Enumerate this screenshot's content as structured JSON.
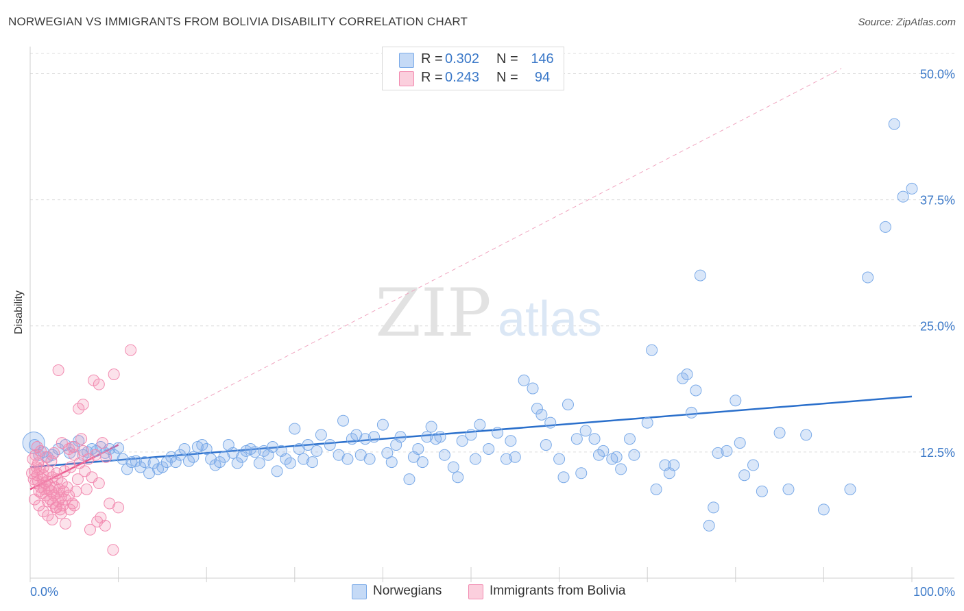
{
  "header": {
    "title": "NORWEGIAN VS IMMIGRANTS FROM BOLIVIA DISABILITY CORRELATION CHART",
    "source": "Source: ZipAtlas.com"
  },
  "watermark": {
    "zip": "ZIP",
    "atlas": "atlas"
  },
  "legend_top": [
    {
      "r_label": "R =",
      "r_value": "0.302",
      "n_label": "N =",
      "n_value": "146",
      "color": "#7aaae8"
    },
    {
      "r_label": "R =",
      "r_value": "0.243",
      "n_label": "N =",
      "n_value": "94",
      "color": "#f28ab0"
    }
  ],
  "legend_bottom": [
    {
      "label": "Norwegians",
      "color": "#7aaae8"
    },
    {
      "label": "Immigrants from Bolivia",
      "color": "#f28ab0"
    }
  ],
  "chart_data": {
    "type": "scatter",
    "title": "NORWEGIAN VS IMMIGRANTS FROM BOLIVIA DISABILITY CORRELATION CHART",
    "xlabel": "",
    "ylabel": "Disability",
    "xlim": [
      0,
      100
    ],
    "ylim": [
      0,
      52
    ],
    "x_tick_labels": [
      "0.0%",
      "100.0%"
    ],
    "y_ticks": [
      12.5,
      25.0,
      37.5,
      50.0
    ],
    "y_tick_labels": [
      "12.5%",
      "25.0%",
      "37.5%",
      "50.0%"
    ],
    "grid": true,
    "legend_position": "top-center",
    "series": [
      {
        "name": "Norwegians",
        "color": "#7aaae8",
        "line_color": "#2a6fcb",
        "trend": {
          "x0": 0,
          "y0": 11.0,
          "x1": 100,
          "y1": 18.0
        },
        "points": [
          [
            0.5,
            13.2
          ],
          [
            1,
            12.2
          ],
          [
            1.5,
            12.5
          ],
          [
            2,
            12.0
          ],
          [
            2.5,
            12.2
          ],
          [
            3.2,
            12.8
          ],
          [
            4,
            13.2
          ],
          [
            4.5,
            12.4
          ],
          [
            5,
            13.0
          ],
          [
            5.5,
            13.6
          ],
          [
            6,
            12.2
          ],
          [
            6.5,
            12.5
          ],
          [
            7,
            12.8
          ],
          [
            7.5,
            12.6
          ],
          [
            8,
            13.0
          ],
          [
            8.5,
            12.4
          ],
          [
            9,
            12.8
          ],
          [
            9.5,
            12.2
          ],
          [
            10,
            12.9
          ],
          [
            10.5,
            11.8
          ],
          [
            11,
            10.8
          ],
          [
            11.5,
            11.5
          ],
          [
            12,
            11.6
          ],
          [
            12.5,
            11.0
          ],
          [
            13,
            11.5
          ],
          [
            13.5,
            10.4
          ],
          [
            14,
            11.4
          ],
          [
            14.5,
            10.8
          ],
          [
            15,
            11.0
          ],
          [
            15.5,
            11.5
          ],
          [
            16,
            12.0
          ],
          [
            16.5,
            11.5
          ],
          [
            17,
            12.2
          ],
          [
            17.5,
            12.8
          ],
          [
            18,
            11.6
          ],
          [
            18.5,
            12.0
          ],
          [
            19,
            13.0
          ],
          [
            19.5,
            13.2
          ],
          [
            20,
            12.8
          ],
          [
            20.5,
            11.8
          ],
          [
            21,
            11.2
          ],
          [
            21.5,
            11.5
          ],
          [
            22,
            12.0
          ],
          [
            22.5,
            13.2
          ],
          [
            23,
            12.4
          ],
          [
            23.5,
            11.4
          ],
          [
            24,
            12.0
          ],
          [
            24.5,
            12.6
          ],
          [
            25,
            12.8
          ],
          [
            25.5,
            12.5
          ],
          [
            26,
            11.4
          ],
          [
            26.5,
            12.6
          ],
          [
            27,
            12.2
          ],
          [
            27.5,
            13.0
          ],
          [
            28,
            10.6
          ],
          [
            28.5,
            12.6
          ],
          [
            29,
            11.8
          ],
          [
            29.5,
            11.4
          ],
          [
            30,
            14.8
          ],
          [
            30.5,
            12.8
          ],
          [
            31,
            11.8
          ],
          [
            31.5,
            13.2
          ],
          [
            32,
            11.5
          ],
          [
            32.5,
            12.6
          ],
          [
            33,
            14.2
          ],
          [
            34,
            13.2
          ],
          [
            35,
            12.2
          ],
          [
            35.5,
            15.6
          ],
          [
            36,
            11.8
          ],
          [
            36.5,
            13.8
          ],
          [
            37,
            14.2
          ],
          [
            37.5,
            12.2
          ],
          [
            38,
            13.8
          ],
          [
            38.5,
            11.8
          ],
          [
            39,
            14.0
          ],
          [
            40,
            15.2
          ],
          [
            40.5,
            12.4
          ],
          [
            41,
            11.5
          ],
          [
            41.5,
            13.2
          ],
          [
            42,
            14.0
          ],
          [
            43,
            9.8
          ],
          [
            43.5,
            12.0
          ],
          [
            44,
            12.8
          ],
          [
            44.5,
            11.5
          ],
          [
            45,
            14.0
          ],
          [
            45.5,
            15.0
          ],
          [
            46,
            13.8
          ],
          [
            46.5,
            14.0
          ],
          [
            47,
            12.2
          ],
          [
            48,
            11.0
          ],
          [
            48.5,
            10.0
          ],
          [
            49,
            13.6
          ],
          [
            50,
            14.2
          ],
          [
            50.5,
            11.8
          ],
          [
            51,
            15.2
          ],
          [
            52,
            12.8
          ],
          [
            53,
            14.4
          ],
          [
            54,
            11.8
          ],
          [
            54.5,
            13.6
          ],
          [
            55,
            12.0
          ],
          [
            56,
            19.6
          ],
          [
            57,
            18.8
          ],
          [
            57.5,
            16.8
          ],
          [
            58,
            16.2
          ],
          [
            58.5,
            13.2
          ],
          [
            59,
            15.4
          ],
          [
            60,
            11.8
          ],
          [
            60.5,
            10.0
          ],
          [
            61,
            17.2
          ],
          [
            62,
            13.8
          ],
          [
            62.5,
            10.4
          ],
          [
            63,
            14.6
          ],
          [
            64,
            13.8
          ],
          [
            64.5,
            12.2
          ],
          [
            65,
            12.6
          ],
          [
            66,
            11.8
          ],
          [
            66.5,
            12.0
          ],
          [
            67,
            10.8
          ],
          [
            68,
            13.8
          ],
          [
            68.5,
            12.2
          ],
          [
            70,
            15.4
          ],
          [
            70.5,
            22.6
          ],
          [
            71,
            8.8
          ],
          [
            72,
            11.2
          ],
          [
            72.5,
            10.4
          ],
          [
            73,
            11.2
          ],
          [
            74,
            19.8
          ],
          [
            74.5,
            20.2
          ],
          [
            75,
            16.4
          ],
          [
            75.5,
            18.6
          ],
          [
            76,
            30.0
          ],
          [
            77,
            5.2
          ],
          [
            77.5,
            7.0
          ],
          [
            78,
            12.4
          ],
          [
            79,
            12.6
          ],
          [
            80,
            17.6
          ],
          [
            80.5,
            13.4
          ],
          [
            81,
            10.2
          ],
          [
            82,
            11.2
          ],
          [
            83,
            8.6
          ],
          [
            85,
            14.4
          ],
          [
            86,
            8.8
          ],
          [
            88,
            14.2
          ],
          [
            90,
            6.8
          ],
          [
            93,
            8.8
          ],
          [
            95,
            29.8
          ],
          [
            97,
            34.8
          ],
          [
            98,
            45.0
          ],
          [
            99,
            37.8
          ],
          [
            100,
            38.6
          ]
        ],
        "big_point": [
          0.4,
          13.4
        ]
      },
      {
        "name": "Immigrants from Bolivia",
        "color": "#f28ab0",
        "line_color": "#e84a84",
        "trend": {
          "x0": 0,
          "y0": 8.8,
          "x1": 10,
          "y1": 13.2
        },
        "diagonal": {
          "x0": 0,
          "y0": 8.8,
          "x1": 92,
          "y1": 50.5
        },
        "points": [
          [
            0.2,
            10.4
          ],
          [
            0.4,
            9.8
          ],
          [
            0.5,
            10.6
          ],
          [
            0.6,
            9.4
          ],
          [
            0.7,
            11.0
          ],
          [
            0.8,
            10.2
          ],
          [
            0.9,
            9.6
          ],
          [
            1.0,
            8.6
          ],
          [
            1.1,
            10.8
          ],
          [
            1.2,
            9.0
          ],
          [
            1.3,
            8.4
          ],
          [
            1.4,
            9.8
          ],
          [
            1.5,
            10.2
          ],
          [
            1.6,
            8.8
          ],
          [
            1.7,
            9.4
          ],
          [
            1.8,
            8.2
          ],
          [
            1.9,
            9.6
          ],
          [
            2.0,
            7.6
          ],
          [
            2.1,
            8.8
          ],
          [
            2.2,
            9.2
          ],
          [
            2.3,
            7.8
          ],
          [
            2.4,
            8.6
          ],
          [
            2.5,
            10.0
          ],
          [
            2.6,
            7.4
          ],
          [
            2.7,
            8.2
          ],
          [
            2.8,
            9.0
          ],
          [
            2.9,
            7.0
          ],
          [
            3.0,
            8.4
          ],
          [
            3.1,
            9.8
          ],
          [
            3.2,
            7.6
          ],
          [
            3.3,
            8.8
          ],
          [
            3.4,
            6.8
          ],
          [
            3.5,
            8.0
          ],
          [
            3.6,
            9.4
          ],
          [
            3.7,
            7.2
          ],
          [
            3.8,
            8.6
          ],
          [
            3.9,
            10.6
          ],
          [
            4.0,
            7.8
          ],
          [
            4.2,
            9.0
          ],
          [
            4.4,
            8.2
          ],
          [
            4.6,
            11.0
          ],
          [
            4.8,
            7.4
          ],
          [
            5.0,
            12.2
          ],
          [
            5.2,
            8.6
          ],
          [
            5.4,
            9.8
          ],
          [
            5.6,
            11.4
          ],
          [
            5.8,
            13.8
          ],
          [
            6.0,
            12.6
          ],
          [
            6.2,
            10.6
          ],
          [
            6.4,
            8.8
          ],
          [
            0.3,
            11.8
          ],
          [
            0.6,
            12.2
          ],
          [
            0.9,
            11.4
          ],
          [
            1.2,
            12.6
          ],
          [
            1.5,
            11.0
          ],
          [
            1.8,
            12.0
          ],
          [
            2.1,
            10.6
          ],
          [
            2.4,
            11.6
          ],
          [
            2.7,
            12.4
          ],
          [
            3.0,
            10.4
          ],
          [
            0.5,
            7.8
          ],
          [
            1.0,
            7.2
          ],
          [
            1.5,
            6.6
          ],
          [
            2.0,
            6.2
          ],
          [
            2.5,
            5.8
          ],
          [
            3.0,
            7.0
          ],
          [
            3.5,
            6.4
          ],
          [
            4.0,
            5.4
          ],
          [
            4.5,
            6.8
          ],
          [
            5.0,
            7.2
          ],
          [
            6.6,
            11.8
          ],
          [
            7.0,
            10.0
          ],
          [
            7.4,
            12.2
          ],
          [
            7.8,
            9.4
          ],
          [
            8.2,
            13.4
          ],
          [
            8.6,
            12.0
          ],
          [
            5.5,
            16.8
          ],
          [
            6.0,
            17.2
          ],
          [
            7.2,
            19.6
          ],
          [
            7.8,
            19.2
          ],
          [
            3.2,
            20.6
          ],
          [
            9.5,
            20.2
          ],
          [
            11.4,
            22.6
          ],
          [
            8.5,
            5.2
          ],
          [
            10,
            7.0
          ],
          [
            9.4,
            2.8
          ],
          [
            3.6,
            13.4
          ],
          [
            4.4,
            12.8
          ],
          [
            4.8,
            13.0
          ],
          [
            0.8,
            13.0
          ],
          [
            6.8,
            4.8
          ],
          [
            7.6,
            5.6
          ],
          [
            8.0,
            6.0
          ],
          [
            9.0,
            7.4
          ]
        ]
      }
    ]
  }
}
